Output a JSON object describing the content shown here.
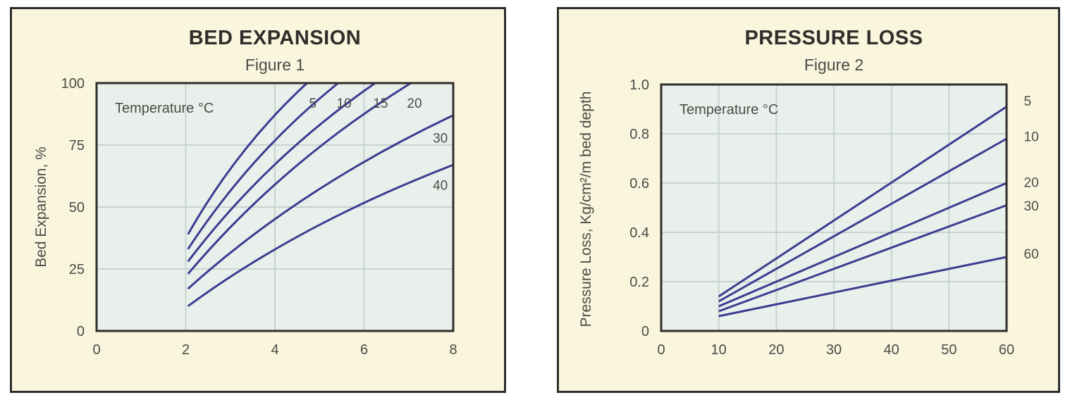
{
  "colors": {
    "page_bg": "#ffffff",
    "panel_bg": "#faf5dd",
    "plot_bg": "#e9f0ec",
    "grid": "#c6d3cf",
    "frame": "#2e2d2a",
    "series_line": "#3c3d90",
    "title_text": "#2f2e2b",
    "text": "#4d4c47"
  },
  "chart_data": [
    {
      "type": "line",
      "title": "BED EXPANSION",
      "subtitle": "Figure 1",
      "xlabel": "",
      "ylabel": "Bed Expansion, %",
      "annotation": "Temperature °C",
      "xlim": [
        0,
        8
      ],
      "ylim": [
        0,
        100
      ],
      "grid": true,
      "curved": true,
      "x_tick_values": [
        0,
        2,
        4,
        6,
        8
      ],
      "x_tick_labels": [
        "0",
        "2",
        "4",
        "6",
        "8"
      ],
      "y_tick_values": [
        0,
        25,
        50,
        75,
        100
      ],
      "y_tick_labels": [
        "0",
        "25",
        "50",
        "75",
        "100"
      ],
      "x_gridlines": [
        2,
        4,
        6
      ],
      "y_gridlines": [
        25,
        50,
        75
      ],
      "legend_position": "labels-on-lines",
      "series_label_placement": "inside",
      "series": [
        {
          "name": "5 °C",
          "label": "5",
          "points": [
            [
              2.05,
              39
            ],
            [
              4.72,
              100
            ]
          ],
          "label_pos": {
            "x": 4.85,
            "y": 92
          }
        },
        {
          "name": "10 °C",
          "label": "10",
          "points": [
            [
              2.05,
              33
            ],
            [
              5.42,
              100
            ]
          ],
          "label_pos": {
            "x": 5.55,
            "y": 92
          }
        },
        {
          "name": "15 °C",
          "label": "15",
          "points": [
            [
              2.05,
              28
            ],
            [
              6.25,
              100
            ]
          ],
          "label_pos": {
            "x": 6.37,
            "y": 92
          }
        },
        {
          "name": "20 °C",
          "label": "20",
          "points": [
            [
              2.05,
              23
            ],
            [
              7.05,
              100
            ]
          ],
          "label_pos": {
            "x": 7.13,
            "y": 92
          }
        },
        {
          "name": "30 °C",
          "label": "30",
          "points": [
            [
              2.05,
              17
            ],
            [
              8,
              87
            ]
          ],
          "label_pos": {
            "x": 7.71,
            "y": 78
          }
        },
        {
          "name": "40 °C",
          "label": "40",
          "points": [
            [
              2.05,
              10
            ],
            [
              8,
              67
            ]
          ],
          "label_pos": {
            "x": 7.71,
            "y": 59
          }
        }
      ]
    },
    {
      "type": "line",
      "title": "PRESSURE LOSS",
      "subtitle": "Figure 2",
      "xlabel": "",
      "ylabel": "Pressure Loss, Kg/cm²/m bed depth",
      "annotation": "Temperature °C",
      "xlim": [
        0,
        60
      ],
      "ylim": [
        0,
        1.0
      ],
      "grid": true,
      "curved": false,
      "x_tick_values": [
        0,
        10,
        20,
        30,
        40,
        50,
        60
      ],
      "x_tick_labels": [
        "0",
        "10",
        "20",
        "30",
        "40",
        "50",
        "60"
      ],
      "y_tick_values": [
        0,
        0.2,
        0.4,
        0.6,
        0.8,
        1.0
      ],
      "y_tick_labels": [
        "0",
        "0.2",
        "0.4",
        "0.6",
        "0.8",
        "1.0"
      ],
      "x_gridlines": [
        10,
        20,
        30,
        40,
        50
      ],
      "y_gridlines": [
        0.2,
        0.4,
        0.6,
        0.8
      ],
      "legend_position": "labels-right-outside",
      "series_label_placement": "outside-right",
      "series": [
        {
          "name": "5 °C",
          "label": "5",
          "points": [
            [
              10,
              0.14
            ],
            [
              60,
              0.91
            ]
          ],
          "label_pos": {
            "x": 63,
            "y": 0.935
          }
        },
        {
          "name": "10 °C",
          "label": "10",
          "points": [
            [
              10,
              0.12
            ],
            [
              60,
              0.78
            ]
          ],
          "label_pos": {
            "x": 63,
            "y": 0.79
          }
        },
        {
          "name": "20 °C",
          "label": "20",
          "points": [
            [
              10,
              0.1
            ],
            [
              60,
              0.6
            ]
          ],
          "label_pos": {
            "x": 63,
            "y": 0.605
          }
        },
        {
          "name": "30 °C",
          "label": "30",
          "points": [
            [
              10,
              0.08
            ],
            [
              60,
              0.51
            ]
          ],
          "label_pos": {
            "x": 63,
            "y": 0.508
          }
        },
        {
          "name": "60 °C",
          "label": "60",
          "points": [
            [
              10,
              0.06
            ],
            [
              60,
              0.3
            ]
          ],
          "label_pos": {
            "x": 63,
            "y": 0.315
          }
        }
      ]
    }
  ]
}
